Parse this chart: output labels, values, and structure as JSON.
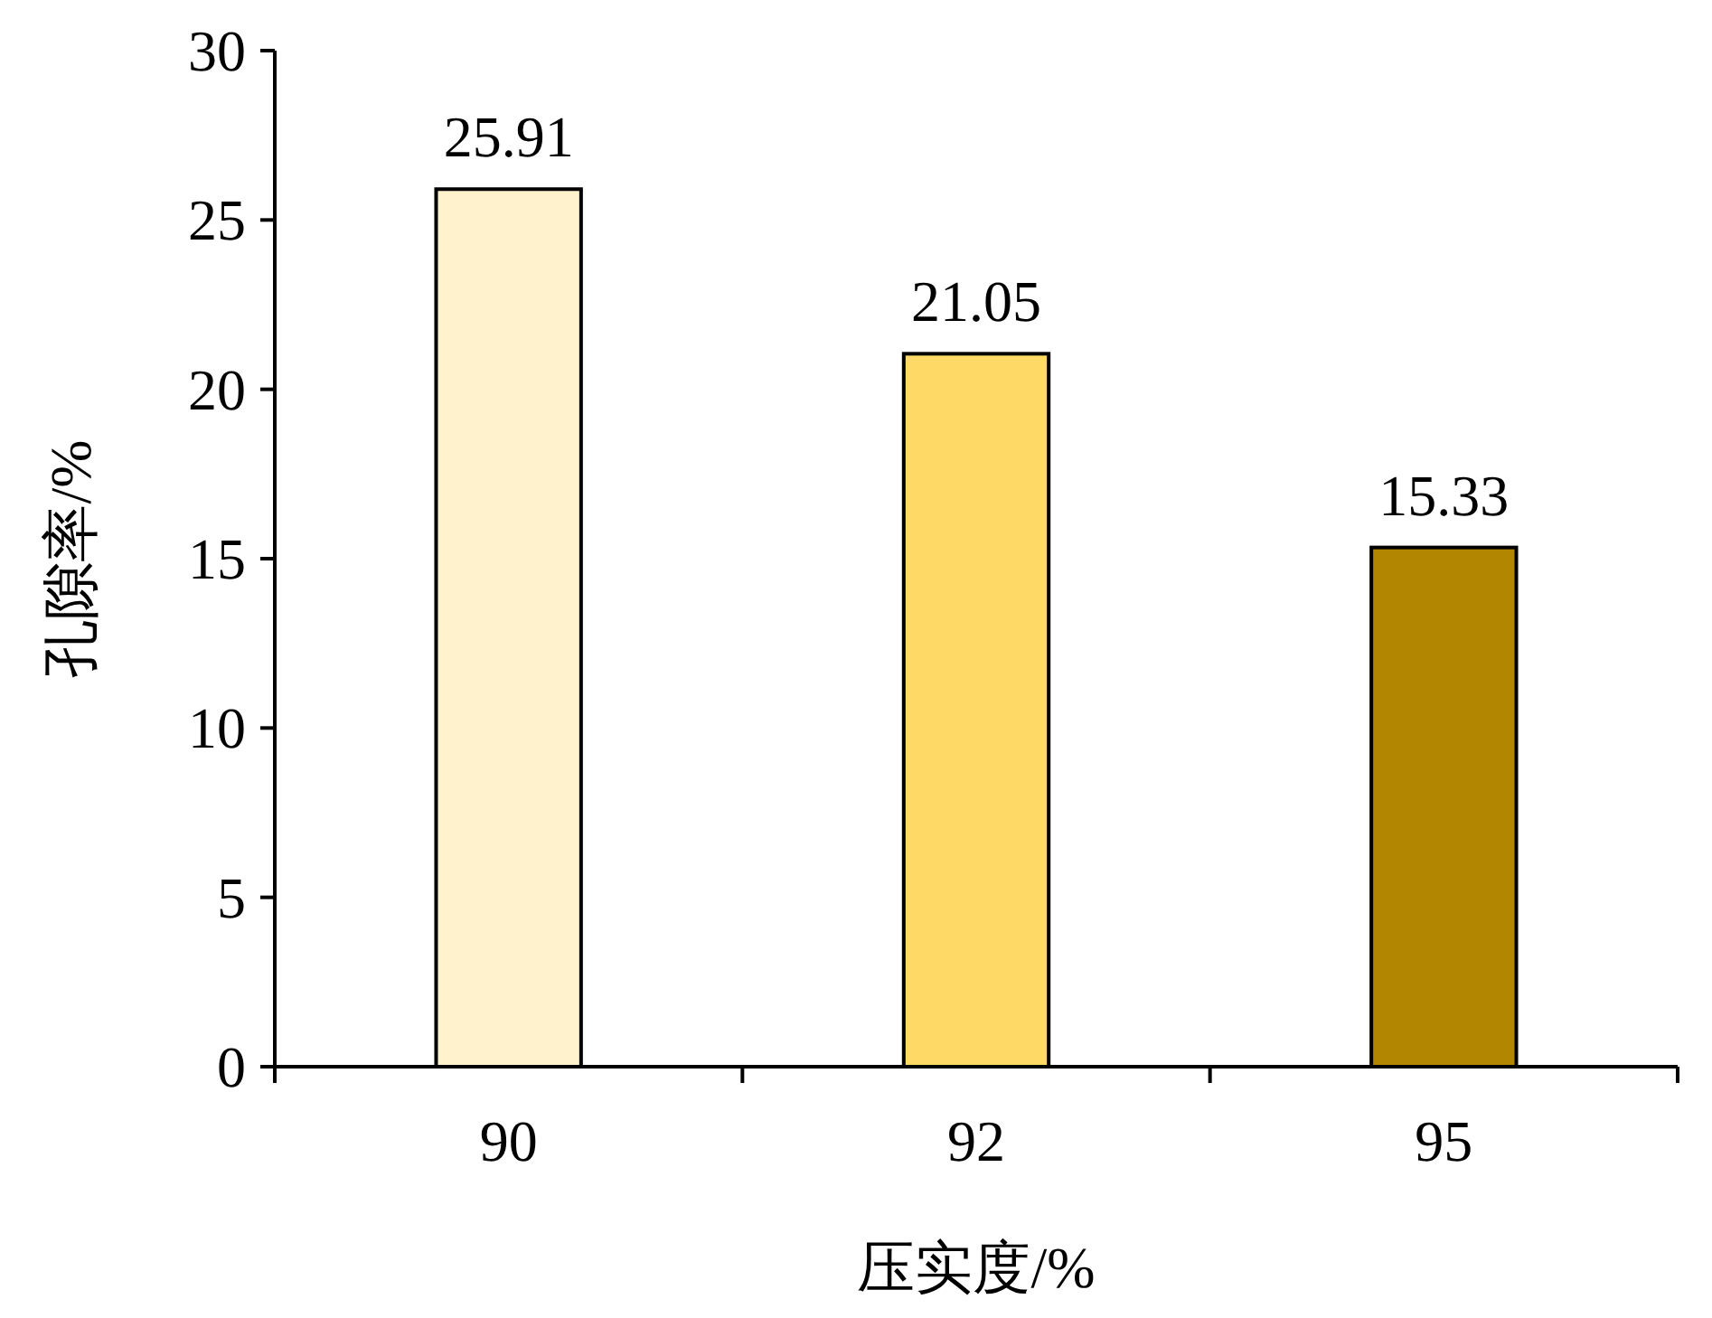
{
  "chart_data": {
    "type": "bar",
    "xlabel": "压实度/%",
    "ylabel": "孔隙率/%",
    "categories": [
      "90",
      "92",
      "95"
    ],
    "values": [
      25.91,
      21.05,
      15.33
    ],
    "colors": [
      "#fff2cc",
      "#ffd966",
      "#b38600"
    ],
    "ylim": [
      0,
      30
    ],
    "yticks": [
      0,
      5,
      10,
      15,
      20,
      25,
      30
    ],
    "data_labels": true
  }
}
